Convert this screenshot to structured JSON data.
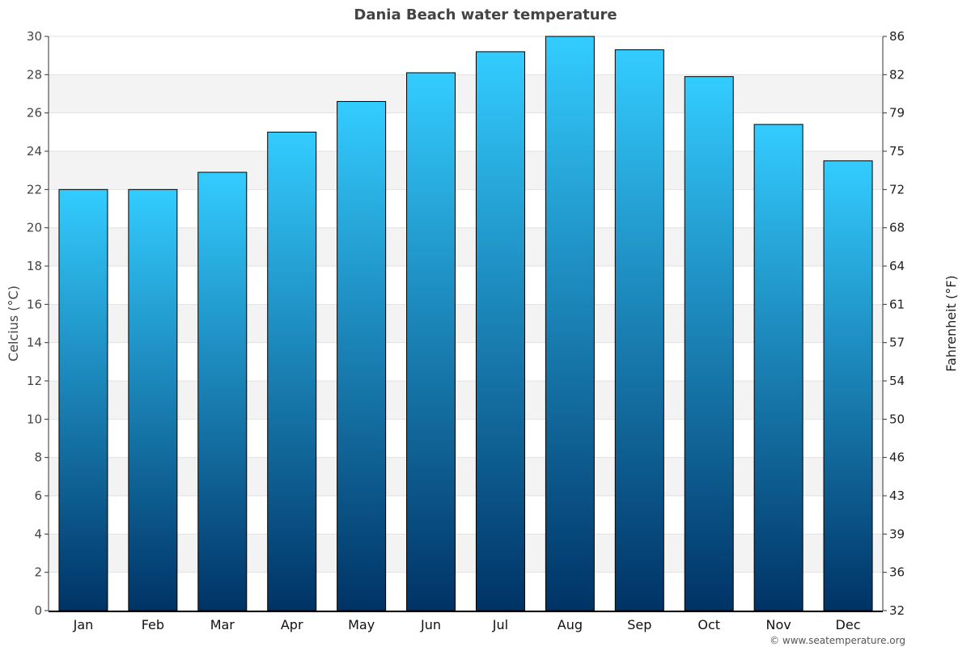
{
  "chart_data": {
    "type": "bar",
    "title": "Dania Beach water temperature",
    "categories": [
      "Jan",
      "Feb",
      "Mar",
      "Apr",
      "May",
      "Jun",
      "Jul",
      "Aug",
      "Sep",
      "Oct",
      "Nov",
      "Dec"
    ],
    "values": [
      22.0,
      22.0,
      22.9,
      25.0,
      26.6,
      28.1,
      29.2,
      30.0,
      29.3,
      27.9,
      25.4,
      23.5
    ],
    "ylabel": "Celcius (°C)",
    "ylabel_right": "Fahrenheit (°F)",
    "ylim": [
      0,
      30
    ],
    "yticks": [
      0,
      2,
      4,
      6,
      8,
      10,
      12,
      14,
      16,
      18,
      20,
      22,
      24,
      26,
      28,
      30
    ],
    "yticks_right": [
      "32",
      "36",
      "39",
      "43",
      "46",
      "50",
      "54",
      "57",
      "61",
      "64",
      "68",
      "72",
      "75",
      "79",
      "82",
      "86"
    ],
    "grid": true,
    "colors": {
      "bar_top": "#33ccff",
      "bar_bottom": "#003366",
      "band": "#f3f3f3"
    }
  },
  "footer": {
    "credit": "© www.seatemperature.org"
  }
}
